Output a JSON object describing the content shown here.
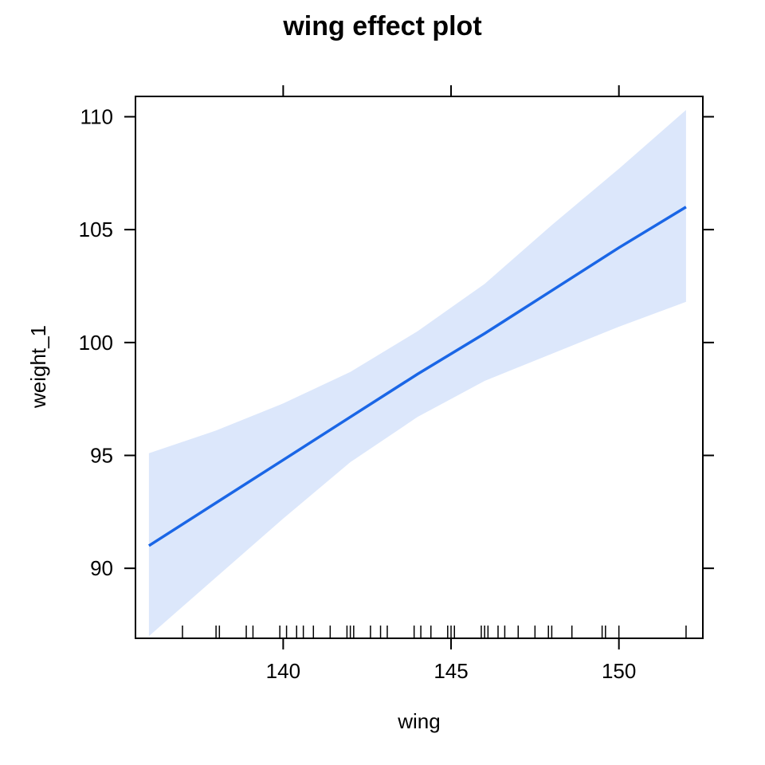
{
  "chart_data": {
    "type": "line",
    "title": "wing effect plot",
    "xlabel": "wing",
    "ylabel": "weight_1",
    "xlim": [
      135.6,
      152.5
    ],
    "ylim": [
      86.9,
      110.9
    ],
    "x_ticks": [
      140,
      145,
      150
    ],
    "y_ticks": [
      90,
      95,
      100,
      105,
      110
    ],
    "grid": false,
    "colors": {
      "line": "#1a66e6",
      "band": "#dce7fb",
      "frame": "#000000"
    },
    "series": [
      {
        "x": [
          136,
          138,
          140,
          142,
          144,
          146,
          148,
          150,
          152
        ],
        "y": [
          91.0,
          92.9,
          94.8,
          96.7,
          98.6,
          100.4,
          102.3,
          104.2,
          106.0
        ],
        "lower": [
          87.0,
          89.6,
          92.2,
          94.7,
          96.7,
          98.3,
          99.5,
          100.7,
          101.8
        ],
        "upper": [
          95.1,
          96.1,
          97.3,
          98.7,
          100.5,
          102.6,
          105.2,
          107.7,
          110.3
        ]
      }
    ],
    "rug_x": [
      137,
      138,
      138.1,
      138.9,
      139.1,
      139.9,
      140.1,
      140.4,
      140.6,
      140.9,
      141.4,
      141.9,
      142,
      142.1,
      142.6,
      142.9,
      143.1,
      143.9,
      144.1,
      144.4,
      144.9,
      145,
      145.1,
      145.9,
      146,
      146.1,
      146.4,
      146.6,
      147,
      147.5,
      147.9,
      148,
      148.6,
      149.5,
      149.6,
      150,
      152
    ]
  }
}
